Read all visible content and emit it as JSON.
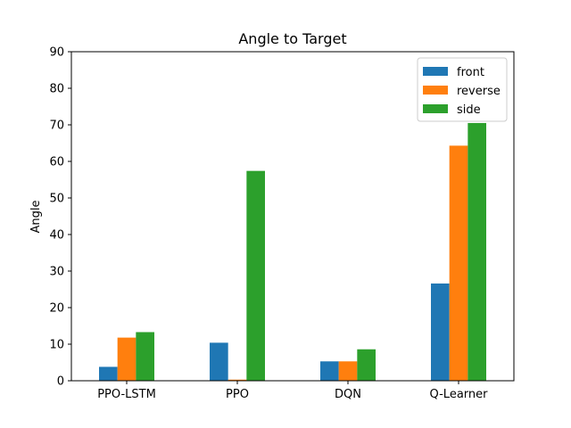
{
  "chart_data": {
    "type": "bar",
    "title": "Angle to Target",
    "xlabel": "",
    "ylabel": "Angle",
    "categories": [
      "PPO-LSTM",
      "PPO",
      "DQN",
      "Q-Learner"
    ],
    "series": [
      {
        "name": "front",
        "color": "#1f77b4",
        "values": [
          3.8,
          10.4,
          5.3,
          26.6
        ]
      },
      {
        "name": "reverse",
        "color": "#ff7f0e",
        "values": [
          11.8,
          0.3,
          5.3,
          64.3
        ]
      },
      {
        "name": "side",
        "color": "#2ca02c",
        "values": [
          13.3,
          57.4,
          8.6,
          70.5
        ]
      }
    ],
    "ylim": [
      0,
      90
    ],
    "yticks": [
      0,
      10,
      20,
      30,
      40,
      50,
      60,
      70,
      80,
      90
    ],
    "grid": false,
    "legend_position": "top-right"
  }
}
